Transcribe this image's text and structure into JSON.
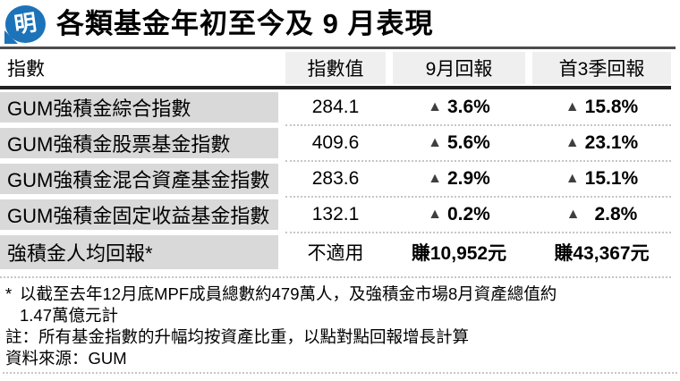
{
  "brand": {
    "logo_glyph": "明",
    "logo_color": "#1c73b9"
  },
  "header": {
    "title": "各類基金年初至今及 9 月表現"
  },
  "table": {
    "col_index": "指數",
    "col_value": "指數值",
    "col_sep": "9月回報",
    "col_q3": "首3季回報",
    "rows": [
      {
        "name": "GUM強積金綜合指數",
        "value": "284.1",
        "sep_tri": "▲",
        "sep": "3.6%",
        "q3_tri": "▲",
        "q3": "15.8%"
      },
      {
        "name": "GUM強積金股票基金指數",
        "value": "409.6",
        "sep_tri": "▲",
        "sep": "5.6%",
        "q3_tri": "▲",
        "q3": "23.1%"
      },
      {
        "name": "GUM強積金混合資產基金指數",
        "value": "283.6",
        "sep_tri": "▲",
        "sep": "2.9%",
        "q3_tri": "▲",
        "q3": "15.1%"
      },
      {
        "name": "GUM強積金固定收益基金指數",
        "value": "132.1",
        "sep_tri": "▲",
        "sep": "0.2%",
        "q3_tri": "▲",
        "q3": "2.8%"
      },
      {
        "name": "強積金人均回報*",
        "value": "不適用",
        "sep": "賺10,952元",
        "q3": "賺43,367元"
      }
    ]
  },
  "footnotes": {
    "fn1_marker": "*",
    "fn1_line1": "以截至去年12月底MPF成員總數約479萬人，及強積金市場8月資產總值約",
    "fn1_line2": "1.47萬億元計",
    "fn2": "註：所有基金指數的升幅均按資產比重，以點對點回報增長計算",
    "fn3": "資料來源：GUM"
  },
  "colors": {
    "logo_blue": "#1c73b9",
    "row_name_bg": "#d9d9d9",
    "header_cell_bg": "#efefef",
    "rule_dark": "#222222",
    "triangle": "#3f3f3f"
  },
  "chart_data": {
    "type": "table",
    "title": "各類基金年初至今及 9 月表現",
    "columns": [
      "指數",
      "指數值",
      "9月回報",
      "首3季回報"
    ],
    "rows": [
      [
        "GUM強積金綜合指數",
        "284.1",
        "▲3.6%",
        "▲15.8%"
      ],
      [
        "GUM強積金股票基金指數",
        "409.6",
        "▲5.6%",
        "▲23.1%"
      ],
      [
        "GUM強積金混合資產基金指數",
        "283.6",
        "▲2.9%",
        "▲15.1%"
      ],
      [
        "GUM強積金固定收益基金指數",
        "132.1",
        "▲0.2%",
        "▲2.8%"
      ],
      [
        "強積金人均回報*",
        "不適用",
        "賺10,952元",
        "賺43,367元"
      ]
    ],
    "notes": [
      "* 以截至去年12月底MPF成員總數約479萬人，及強積金市場8月資產總值約1.47萬億元計",
      "註：所有基金指數的升幅均按資產比重，以點對點回報增長計算"
    ],
    "source": "GUM"
  }
}
